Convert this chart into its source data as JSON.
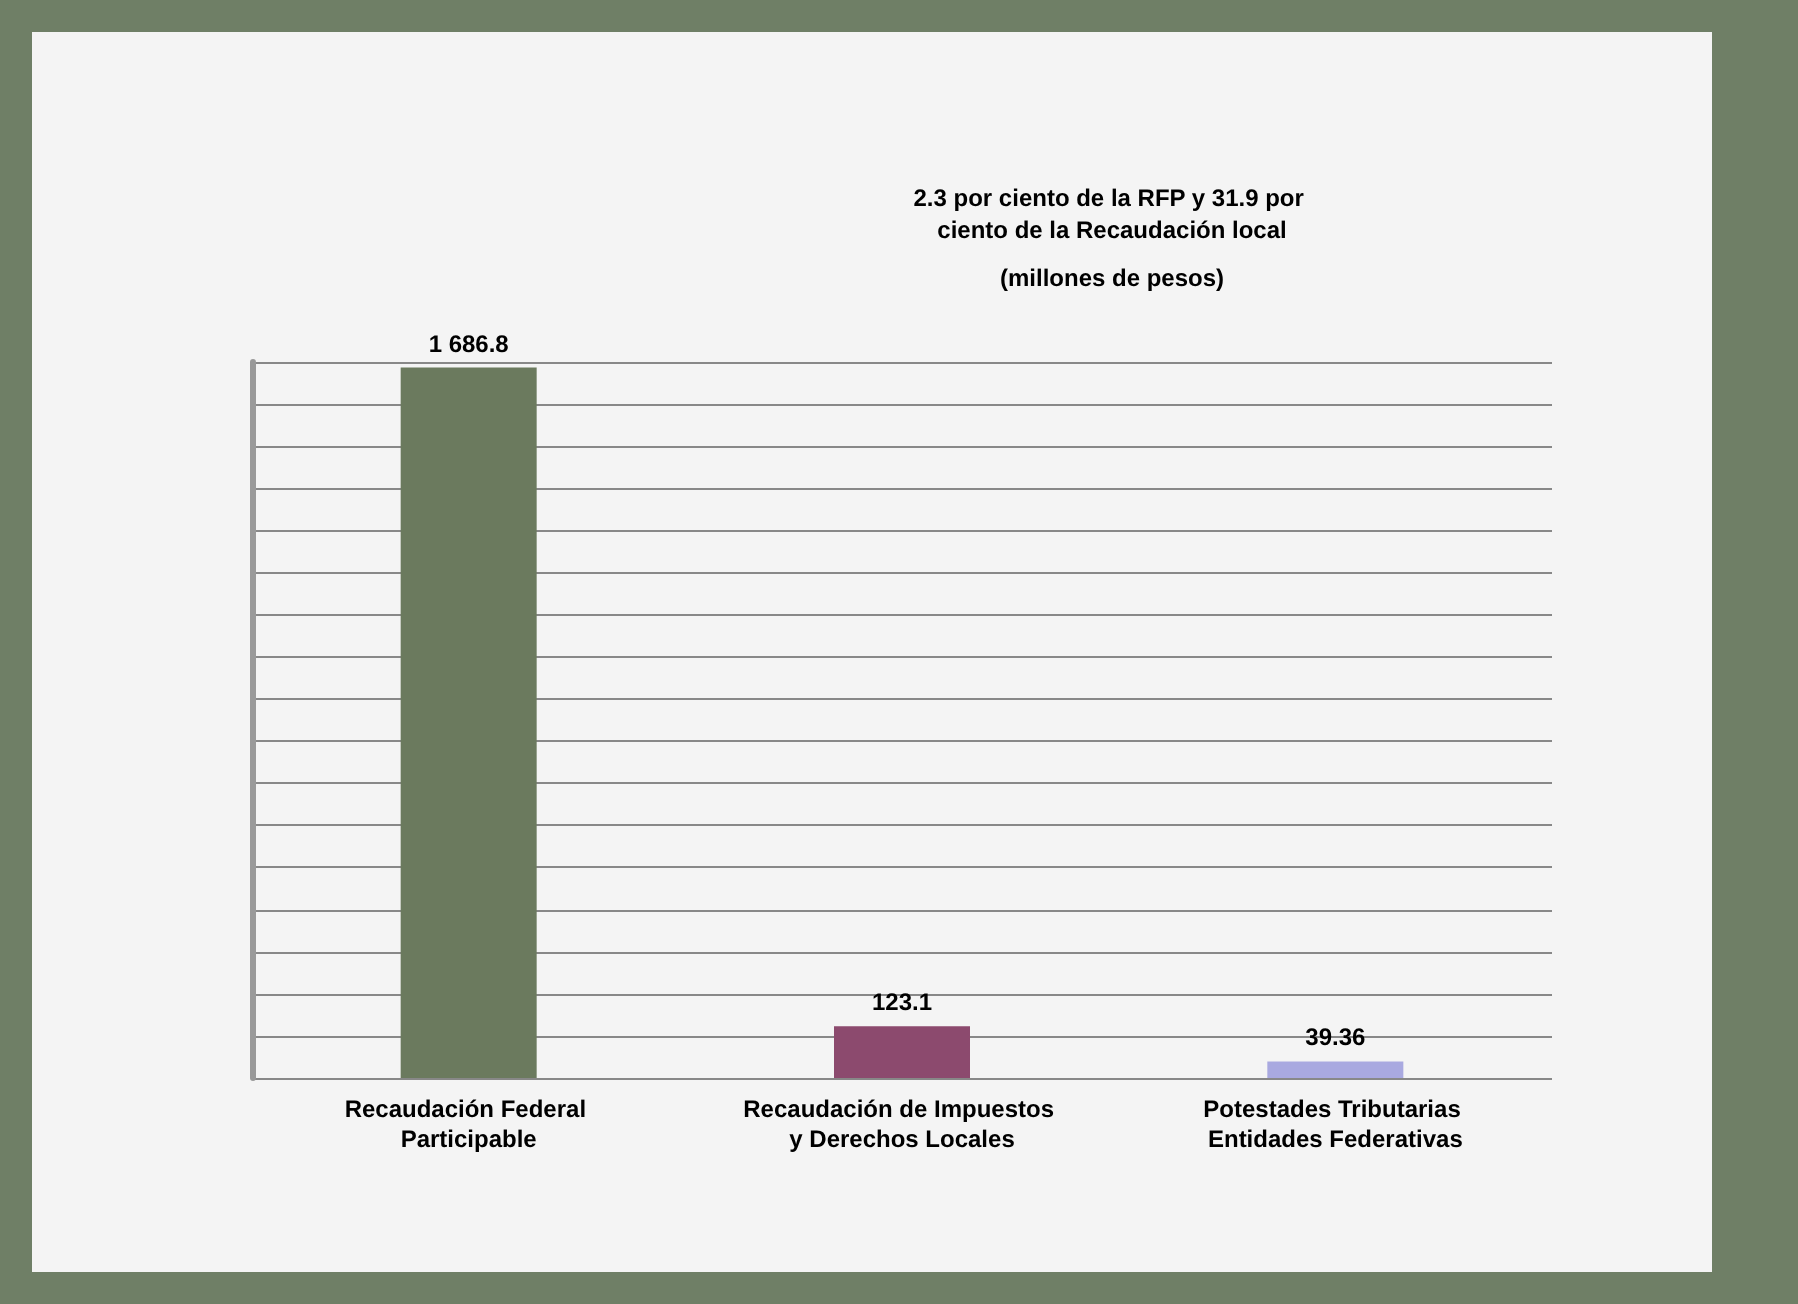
{
  "chart_data": {
    "type": "bar",
    "title": "2.3 por ciento de la RFP y 31.9 por ciento de la Recaudación local",
    "subtitle": "(millones de pesos)",
    "categories": [
      "Recaudación Federal Participable",
      "Recaudación de Impuestos y Derechos Locales",
      "Potestades Tributarias Entidades Federativas"
    ],
    "values": [
      1686.8,
      123.1,
      39.36
    ],
    "colors": [
      "#6b7a5e",
      "#8c4a6e",
      "#a9a9e0"
    ],
    "value_labels": [
      "1 686.8",
      "123.1",
      "39.36"
    ],
    "grid": "y",
    "tick_labels": "x"
  }
}
